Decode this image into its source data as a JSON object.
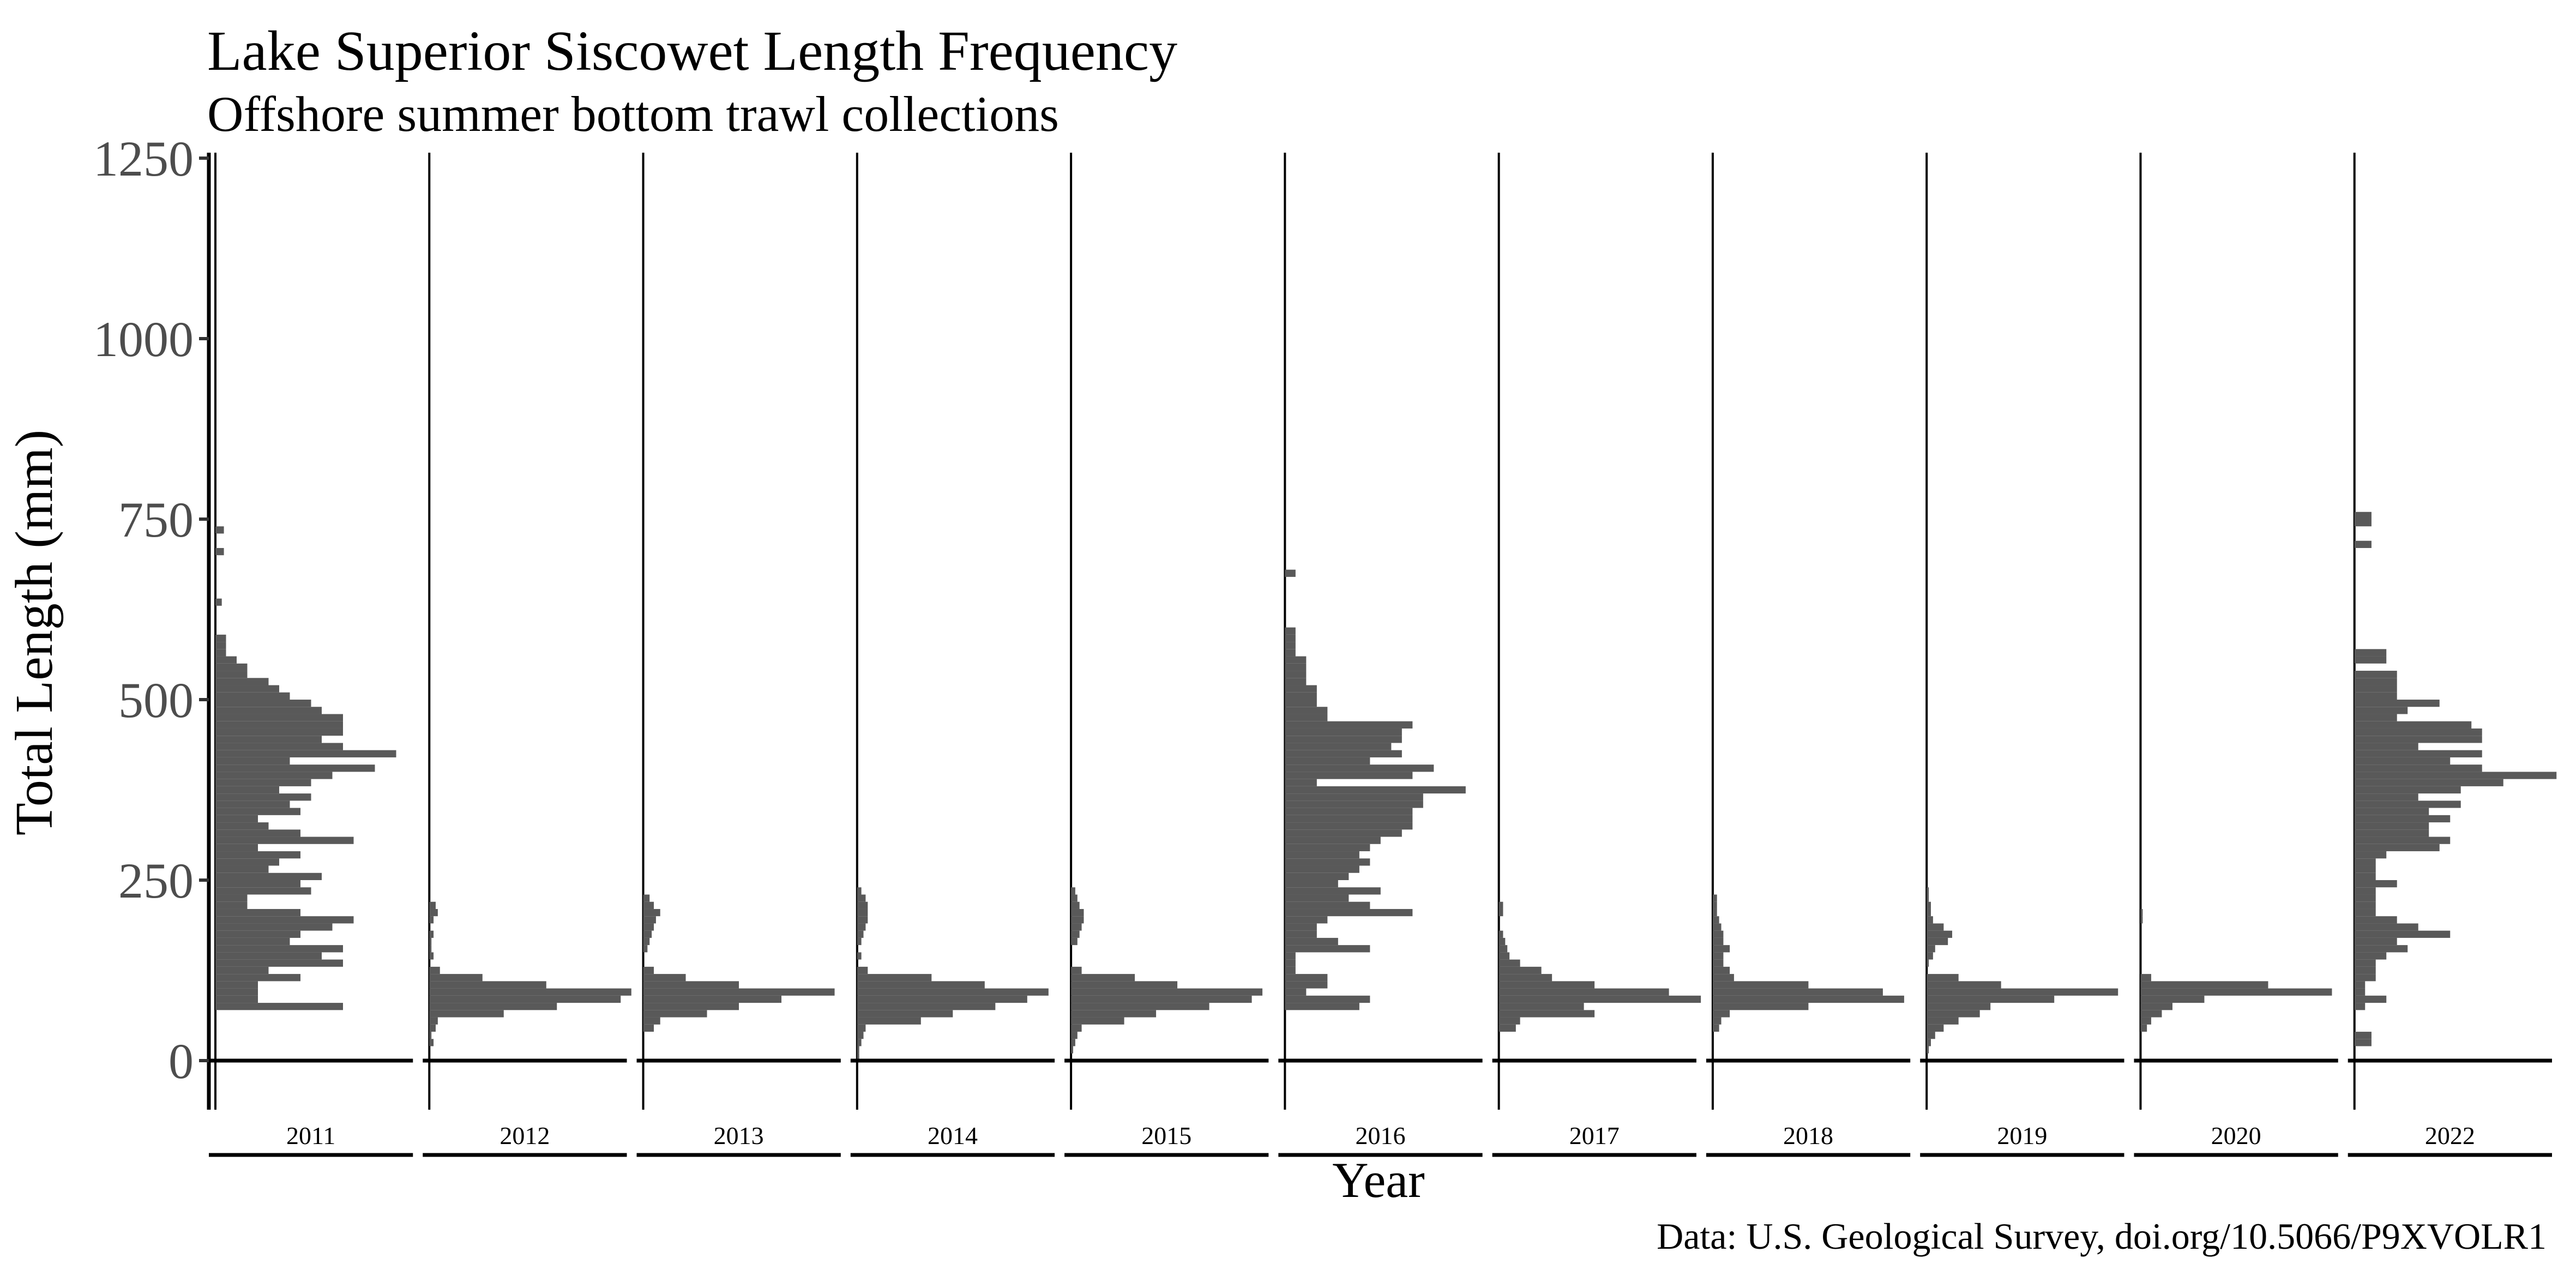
{
  "chart_data": {
    "type": "bar",
    "orientation": "horizontal-histogram-facets",
    "title": "Lake Superior Siscowet Length Frequency",
    "subtitle": "Offshore summer bottom trawl collections",
    "xlabel": "Year",
    "ylabel": "Total Length (mm)",
    "caption": "Data: U.S. Geological Survey, doi.org/10.5066/P9XVOLR1",
    "ylim": [
      0,
      1250
    ],
    "yticks": [
      "0",
      "250",
      "500",
      "750",
      "1000",
      "1250"
    ],
    "bin_width_mm": 10,
    "grid": false,
    "facets": [
      {
        "label": "2011",
        "bins": [
          [
            70,
            60
          ],
          [
            80,
            20
          ],
          [
            90,
            20
          ],
          [
            100,
            20
          ],
          [
            110,
            40
          ],
          [
            120,
            25
          ],
          [
            130,
            60
          ],
          [
            140,
            50
          ],
          [
            150,
            60
          ],
          [
            160,
            35
          ],
          [
            170,
            40
          ],
          [
            180,
            55
          ],
          [
            190,
            65
          ],
          [
            200,
            40
          ],
          [
            210,
            15
          ],
          [
            220,
            15
          ],
          [
            230,
            45
          ],
          [
            240,
            40
          ],
          [
            250,
            50
          ],
          [
            260,
            25
          ],
          [
            270,
            30
          ],
          [
            280,
            40
          ],
          [
            290,
            20
          ],
          [
            300,
            65
          ],
          [
            310,
            40
          ],
          [
            320,
            25
          ],
          [
            330,
            20
          ],
          [
            340,
            40
          ],
          [
            350,
            35
          ],
          [
            360,
            45
          ],
          [
            370,
            30
          ],
          [
            380,
            45
          ],
          [
            390,
            55
          ],
          [
            400,
            75
          ],
          [
            410,
            35
          ],
          [
            420,
            85
          ],
          [
            430,
            60
          ],
          [
            440,
            50
          ],
          [
            450,
            60
          ],
          [
            460,
            60
          ],
          [
            470,
            60
          ],
          [
            480,
            50
          ],
          [
            490,
            45
          ],
          [
            500,
            35
          ],
          [
            510,
            30
          ],
          [
            520,
            25
          ],
          [
            530,
            15
          ],
          [
            540,
            15
          ],
          [
            550,
            10
          ],
          [
            560,
            5
          ],
          [
            570,
            5
          ],
          [
            580,
            5
          ],
          [
            630,
            3
          ],
          [
            700,
            4
          ],
          [
            730,
            4
          ]
        ]
      },
      {
        "label": "2012",
        "bins": [
          [
            20,
            2
          ],
          [
            30,
            1
          ],
          [
            40,
            3
          ],
          [
            50,
            4
          ],
          [
            60,
            35
          ],
          [
            70,
            60
          ],
          [
            80,
            90
          ],
          [
            90,
            95
          ],
          [
            100,
            55
          ],
          [
            110,
            25
          ],
          [
            120,
            5
          ],
          [
            140,
            2
          ],
          [
            150,
            1
          ],
          [
            160,
            1
          ],
          [
            170,
            2
          ],
          [
            190,
            2
          ],
          [
            200,
            4
          ],
          [
            210,
            3
          ]
        ]
      },
      {
        "label": "2013",
        "bins": [
          [
            40,
            5
          ],
          [
            50,
            8
          ],
          [
            60,
            30
          ],
          [
            70,
            45
          ],
          [
            80,
            65
          ],
          [
            90,
            90
          ],
          [
            100,
            45
          ],
          [
            110,
            20
          ],
          [
            120,
            5
          ],
          [
            150,
            2
          ],
          [
            160,
            3
          ],
          [
            170,
            4
          ],
          [
            180,
            5
          ],
          [
            190,
            6
          ],
          [
            200,
            8
          ],
          [
            210,
            5
          ],
          [
            220,
            3
          ]
        ]
      },
      {
        "label": "2014",
        "bins": [
          [
            0,
            1
          ],
          [
            10,
            1
          ],
          [
            20,
            2
          ],
          [
            30,
            3
          ],
          [
            40,
            4
          ],
          [
            50,
            30
          ],
          [
            60,
            45
          ],
          [
            70,
            65
          ],
          [
            80,
            80
          ],
          [
            90,
            90
          ],
          [
            100,
            60
          ],
          [
            110,
            35
          ],
          [
            120,
            5
          ],
          [
            140,
            2
          ],
          [
            160,
            2
          ],
          [
            170,
            3
          ],
          [
            180,
            4
          ],
          [
            190,
            5
          ],
          [
            200,
            5
          ],
          [
            210,
            5
          ],
          [
            220,
            4
          ],
          [
            230,
            2
          ]
        ]
      },
      {
        "label": "2015",
        "bins": [
          [
            10,
            1
          ],
          [
            20,
            2
          ],
          [
            30,
            3
          ],
          [
            40,
            5
          ],
          [
            50,
            25
          ],
          [
            60,
            40
          ],
          [
            70,
            65
          ],
          [
            80,
            85
          ],
          [
            90,
            90
          ],
          [
            100,
            50
          ],
          [
            110,
            30
          ],
          [
            120,
            5
          ],
          [
            160,
            3
          ],
          [
            170,
            4
          ],
          [
            180,
            5
          ],
          [
            190,
            6
          ],
          [
            200,
            6
          ],
          [
            210,
            4
          ],
          [
            220,
            3
          ],
          [
            230,
            2
          ]
        ]
      },
      {
        "label": "2016",
        "bins": [
          [
            70,
            35
          ],
          [
            80,
            40
          ],
          [
            90,
            10
          ],
          [
            100,
            20
          ],
          [
            110,
            20
          ],
          [
            120,
            5
          ],
          [
            130,
            5
          ],
          [
            140,
            5
          ],
          [
            150,
            40
          ],
          [
            160,
            25
          ],
          [
            170,
            15
          ],
          [
            180,
            15
          ],
          [
            190,
            20
          ],
          [
            200,
            60
          ],
          [
            210,
            40
          ],
          [
            220,
            30
          ],
          [
            230,
            45
          ],
          [
            240,
            25
          ],
          [
            250,
            30
          ],
          [
            260,
            35
          ],
          [
            270,
            40
          ],
          [
            280,
            35
          ],
          [
            290,
            40
          ],
          [
            300,
            45
          ],
          [
            310,
            55
          ],
          [
            320,
            60
          ],
          [
            330,
            60
          ],
          [
            340,
            60
          ],
          [
            350,
            65
          ],
          [
            360,
            65
          ],
          [
            370,
            85
          ],
          [
            380,
            15
          ],
          [
            390,
            60
          ],
          [
            400,
            70
          ],
          [
            410,
            40
          ],
          [
            420,
            55
          ],
          [
            430,
            50
          ],
          [
            440,
            55
          ],
          [
            450,
            55
          ],
          [
            460,
            60
          ],
          [
            470,
            20
          ],
          [
            480,
            20
          ],
          [
            490,
            15
          ],
          [
            500,
            15
          ],
          [
            510,
            15
          ],
          [
            520,
            10
          ],
          [
            530,
            10
          ],
          [
            540,
            10
          ],
          [
            550,
            10
          ],
          [
            560,
            5
          ],
          [
            570,
            5
          ],
          [
            580,
            5
          ],
          [
            590,
            5
          ],
          [
            670,
            5
          ]
        ]
      },
      {
        "label": "2017",
        "bins": [
          [
            40,
            8
          ],
          [
            50,
            10
          ],
          [
            60,
            45
          ],
          [
            70,
            40
          ],
          [
            80,
            95
          ],
          [
            90,
            80
          ],
          [
            100,
            45
          ],
          [
            110,
            25
          ],
          [
            120,
            20
          ],
          [
            130,
            10
          ],
          [
            140,
            5
          ],
          [
            150,
            4
          ],
          [
            160,
            3
          ],
          [
            170,
            2
          ],
          [
            200,
            2
          ],
          [
            210,
            2
          ]
        ]
      },
      {
        "label": "2018",
        "bins": [
          [
            40,
            3
          ],
          [
            50,
            4
          ],
          [
            60,
            8
          ],
          [
            70,
            45
          ],
          [
            80,
            90
          ],
          [
            90,
            80
          ],
          [
            100,
            45
          ],
          [
            110,
            10
          ],
          [
            120,
            8
          ],
          [
            130,
            5
          ],
          [
            140,
            5
          ],
          [
            150,
            8
          ],
          [
            160,
            5
          ],
          [
            170,
            5
          ],
          [
            180,
            4
          ],
          [
            190,
            3
          ],
          [
            200,
            2
          ],
          [
            210,
            2
          ],
          [
            220,
            2
          ]
        ]
      },
      {
        "label": "2019",
        "bins": [
          [
            10,
            1
          ],
          [
            20,
            2
          ],
          [
            30,
            4
          ],
          [
            40,
            8
          ],
          [
            50,
            15
          ],
          [
            60,
            25
          ],
          [
            70,
            30
          ],
          [
            80,
            60
          ],
          [
            90,
            90
          ],
          [
            100,
            35
          ],
          [
            110,
            15
          ],
          [
            130,
            1
          ],
          [
            140,
            3
          ],
          [
            150,
            4
          ],
          [
            160,
            10
          ],
          [
            170,
            12
          ],
          [
            180,
            8
          ],
          [
            190,
            3
          ],
          [
            200,
            2
          ],
          [
            210,
            2
          ],
          [
            220,
            1
          ],
          [
            230,
            1
          ]
        ]
      },
      {
        "label": "2020",
        "bins": [
          [
            40,
            3
          ],
          [
            50,
            5
          ],
          [
            60,
            10
          ],
          [
            70,
            15
          ],
          [
            80,
            30
          ],
          [
            90,
            90
          ],
          [
            100,
            60
          ],
          [
            110,
            5
          ],
          [
            190,
            1
          ],
          [
            200,
            1
          ]
        ]
      },
      {
        "label": "2022",
        "bins": [
          [
            20,
            8
          ],
          [
            30,
            8
          ],
          [
            70,
            5
          ],
          [
            80,
            15
          ],
          [
            90,
            5
          ],
          [
            100,
            5
          ],
          [
            110,
            10
          ],
          [
            120,
            10
          ],
          [
            130,
            10
          ],
          [
            140,
            15
          ],
          [
            150,
            25
          ],
          [
            160,
            20
          ],
          [
            170,
            45
          ],
          [
            180,
            30
          ],
          [
            190,
            20
          ],
          [
            200,
            10
          ],
          [
            210,
            10
          ],
          [
            220,
            10
          ],
          [
            230,
            10
          ],
          [
            240,
            20
          ],
          [
            250,
            10
          ],
          [
            260,
            10
          ],
          [
            270,
            10
          ],
          [
            280,
            15
          ],
          [
            290,
            40
          ],
          [
            300,
            45
          ],
          [
            310,
            35
          ],
          [
            320,
            35
          ],
          [
            330,
            45
          ],
          [
            340,
            35
          ],
          [
            350,
            50
          ],
          [
            360,
            30
          ],
          [
            370,
            50
          ],
          [
            380,
            70
          ],
          [
            390,
            95
          ],
          [
            400,
            60
          ],
          [
            410,
            45
          ],
          [
            420,
            60
          ],
          [
            430,
            30
          ],
          [
            440,
            60
          ],
          [
            450,
            60
          ],
          [
            460,
            55
          ],
          [
            470,
            20
          ],
          [
            480,
            25
          ],
          [
            490,
            40
          ],
          [
            500,
            20
          ],
          [
            510,
            20
          ],
          [
            520,
            20
          ],
          [
            530,
            20
          ],
          [
            550,
            15
          ],
          [
            560,
            15
          ],
          [
            710,
            8
          ],
          [
            740,
            8
          ],
          [
            750,
            8
          ]
        ]
      }
    ]
  }
}
